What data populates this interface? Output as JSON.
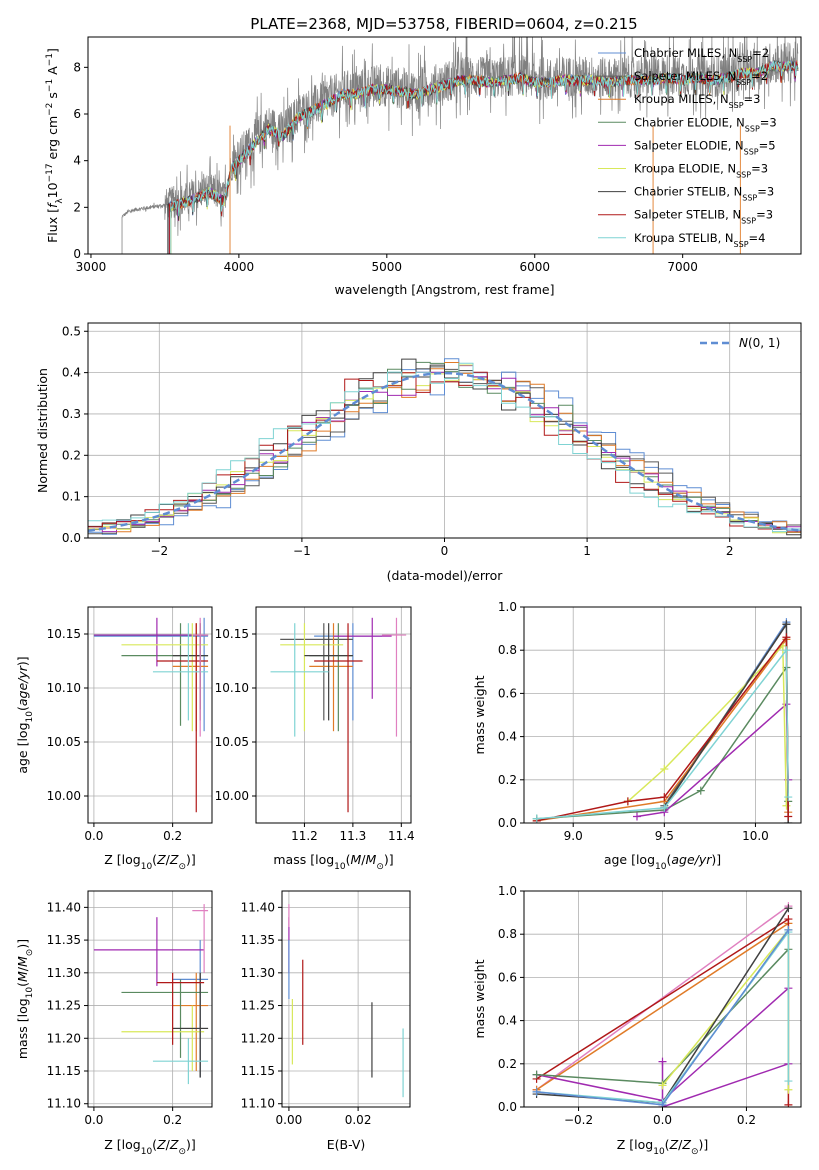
{
  "figure_title": "PLATE=2368, MJD=53758, FIBERID=0604, z=0.215",
  "colors": {
    "Chabrier MILES": "#5f8dd3",
    "Salpeter MILES": "#5a5a5a",
    "Kroupa MILES": "#e07b28",
    "Chabrier ELODIE": "#5a8a60",
    "Salpeter ELODIE": "#a02ab0",
    "Kroupa ELODIE": "#d8e85a",
    "Chabrier STELIB": "#404040",
    "Salpeter STELIB": "#b01818",
    "Kroupa STELIB": "#7fd3d3",
    "data": "#808080",
    "pink": "#e080c0",
    "gauss": "#5f8dd3",
    "grid": "#b0b0b0"
  },
  "chart_data": [
    {
      "id": "spectrum",
      "type": "line",
      "title": "PLATE=2368, MJD=53758, FIBERID=0604, z=0.215",
      "xlabel": "wavelength [Angstrom, rest frame]",
      "ylabel": "Flux [f_λ 10^-17 erg cm^-2 s^-1 A^-1]",
      "xlim": [
        2980,
        7800
      ],
      "ylim": [
        0,
        9.3
      ],
      "xticks": [
        3000,
        4000,
        5000,
        6000,
        7000
      ],
      "yticks": [
        0,
        2,
        4,
        6,
        8
      ],
      "grid": false,
      "legend_position": "upper right",
      "legend": [
        "Chabrier MILES, N_SSP=2",
        "Salpeter MILES, N_SSP=2",
        "Kroupa MILES, N_SSP=3",
        "Chabrier ELODIE, N_SSP=3",
        "Salpeter ELODIE, N_SSP=5",
        "Kroupa ELODIE, N_SSP=3",
        "Chabrier STELIB, N_SSP=3",
        "Salpeter STELIB, N_SSP=3",
        "Kroupa STELIB, N_SSP=4"
      ],
      "legend_colors": [
        "Chabrier MILES",
        "Salpeter MILES",
        "Kroupa MILES",
        "Chabrier ELODIE",
        "Salpeter ELODIE",
        "Kroupa ELODIE",
        "Chabrier STELIB",
        "Salpeter STELIB",
        "Kroupa STELIB"
      ],
      "data_envelope": {
        "x": [
          3210,
          3250,
          3300,
          3400,
          3500,
          3600,
          3700,
          3800,
          3900,
          3950,
          4050,
          4200,
          4300,
          4400,
          4500,
          4600,
          4700,
          4800,
          4900,
          5000,
          5100,
          5200,
          5300,
          5400,
          5500,
          5600,
          5700,
          5800,
          5900,
          6000,
          6100,
          6200,
          6300,
          6400,
          6500,
          6600,
          6700,
          6800,
          6900,
          7000,
          7100,
          7200,
          7300,
          7400,
          7500,
          7600
        ],
        "y": [
          1.6,
          1.8,
          1.9,
          2.0,
          2.1,
          2.3,
          2.5,
          2.8,
          2.4,
          3.8,
          4.5,
          5.5,
          5.2,
          6.0,
          6.3,
          6.6,
          7.0,
          7.0,
          7.2,
          7.2,
          7.1,
          7.0,
          7.2,
          7.4,
          7.6,
          7.6,
          7.5,
          7.6,
          7.7,
          7.5,
          7.5,
          7.6,
          7.6,
          7.6,
          7.5,
          7.6,
          7.6,
          7.6,
          7.7,
          7.6,
          7.7,
          7.6,
          7.7,
          7.9,
          7.9,
          8.2
        ]
      },
      "model_start": 3520
    },
    {
      "id": "residuals",
      "type": "bar",
      "xlabel": "(data-model)/error",
      "ylabel": "Normed distribution",
      "xlim": [
        -2.5,
        2.5
      ],
      "ylim": [
        0,
        0.52
      ],
      "xticks": [
        -2,
        -1,
        0,
        1,
        2
      ],
      "yticks": [
        0.0,
        0.1,
        0.2,
        0.3,
        0.4,
        0.5
      ],
      "grid": true,
      "legend": [
        "N(0,1)"
      ],
      "legend_position": "upper right",
      "gaussian": {
        "mean": 0,
        "sigma": 1
      },
      "bin_width": 0.1,
      "series_order": [
        "Chabrier MILES",
        "Salpeter MILES",
        "Kroupa MILES",
        "Chabrier ELODIE",
        "Salpeter ELODIE",
        "Kroupa ELODIE",
        "Chabrier STELIB",
        "Salpeter STELIB",
        "Kroupa STELIB"
      ]
    },
    {
      "id": "age_vs_Z",
      "type": "scatter",
      "xlabel": "Z [log10(Z/Z⊙)]",
      "ylabel": "age  [log10(age/yr)]",
      "xlim": [
        -0.015,
        0.3
      ],
      "ylim": [
        9.975,
        10.175
      ],
      "xticks": [
        0.0,
        0.2
      ],
      "yticks": [
        10.0,
        10.05,
        10.1,
        10.15
      ],
      "grid": true,
      "points": [
        {
          "s": "Chabrier MILES",
          "x": 0.28,
          "y": 10.148,
          "xlo": 0.0,
          "xhi": 0.29,
          "ylo": 10.06,
          "yhi": 10.165
        },
        {
          "s": "Salpeter MILES",
          "x": 0.27,
          "y": 10.149,
          "xlo": 0.0,
          "xhi": 0.29,
          "ylo": 10.07,
          "yhi": 10.16
        },
        {
          "s": "Kroupa MILES",
          "x": 0.26,
          "y": 10.12,
          "xlo": 0.2,
          "xhi": 0.29,
          "ylo": 10.06,
          "yhi": 10.16
        },
        {
          "s": "Chabrier ELODIE",
          "x": 0.22,
          "y": 10.13,
          "xlo": 0.07,
          "xhi": 0.29,
          "ylo": 10.065,
          "yhi": 10.16
        },
        {
          "s": "Salpeter ELODIE",
          "x": 0.16,
          "y": 10.149,
          "xlo": 0.0,
          "xhi": 0.29,
          "ylo": 10.12,
          "yhi": 10.165
        },
        {
          "s": "Kroupa ELODIE",
          "x": 0.25,
          "y": 10.14,
          "xlo": 0.07,
          "xhi": 0.29,
          "ylo": 10.06,
          "yhi": 10.16
        },
        {
          "s": "Chabrier STELIB",
          "x": 0.27,
          "y": 10.13,
          "xlo": 0.2,
          "xhi": 0.29,
          "ylo": 10.08,
          "yhi": 10.16
        },
        {
          "s": "Salpeter STELIB",
          "x": 0.26,
          "y": 10.125,
          "xlo": 0.16,
          "xhi": 0.29,
          "ylo": 9.985,
          "yhi": 10.16
        },
        {
          "s": "Kroupa STELIB",
          "x": 0.24,
          "y": 10.115,
          "xlo": 0.15,
          "xhi": 0.29,
          "ylo": 10.07,
          "yhi": 10.16
        },
        {
          "s": "pink",
          "x": 0.27,
          "y": 10.149,
          "xlo": 0.25,
          "xhi": 0.29,
          "ylo": 10.055,
          "yhi": 10.165
        }
      ]
    },
    {
      "id": "age_vs_mass",
      "type": "scatter",
      "xlabel": "mass [log10(M/M⊙)]",
      "ylabel": "",
      "xlim": [
        11.1,
        11.42
      ],
      "ylim": [
        9.975,
        10.175
      ],
      "xticks": [
        11.2,
        11.3,
        11.4
      ],
      "yticks": [
        10.0,
        10.05,
        10.1,
        10.15
      ],
      "grid": true,
      "points": [
        {
          "s": "Chabrier MILES",
          "x": 11.3,
          "y": 10.148,
          "xlo": 11.22,
          "xhi": 11.36,
          "ylo": 10.07,
          "yhi": 10.16
        },
        {
          "s": "Salpeter MILES",
          "x": 11.24,
          "y": 10.145,
          "xlo": 11.15,
          "xhi": 11.3,
          "ylo": 10.07,
          "yhi": 10.16
        },
        {
          "s": "Kroupa MILES",
          "x": 11.26,
          "y": 10.12,
          "xlo": 11.21,
          "xhi": 11.3,
          "ylo": 10.06,
          "yhi": 10.16
        },
        {
          "s": "Chabrier ELODIE",
          "x": 11.27,
          "y": 10.13,
          "xlo": 11.21,
          "xhi": 11.3,
          "ylo": 10.06,
          "yhi": 10.16
        },
        {
          "s": "Salpeter ELODIE",
          "x": 11.34,
          "y": 10.148,
          "xlo": 11.26,
          "xhi": 11.38,
          "ylo": 10.09,
          "yhi": 10.165
        },
        {
          "s": "Kroupa ELODIE",
          "x": 11.2,
          "y": 10.14,
          "xlo": 11.15,
          "xhi": 11.28,
          "ylo": 10.06,
          "yhi": 10.16
        },
        {
          "s": "Chabrier STELIB",
          "x": 11.25,
          "y": 10.13,
          "xlo": 11.2,
          "xhi": 11.3,
          "ylo": 10.07,
          "yhi": 10.16
        },
        {
          "s": "Salpeter STELIB",
          "x": 11.29,
          "y": 10.125,
          "xlo": 11.22,
          "xhi": 11.32,
          "ylo": 9.985,
          "yhi": 10.16
        },
        {
          "s": "Kroupa STELIB",
          "x": 11.18,
          "y": 10.115,
          "xlo": 11.13,
          "xhi": 11.25,
          "ylo": 10.055,
          "yhi": 10.16
        },
        {
          "s": "pink",
          "x": 11.39,
          "y": 10.149,
          "xlo": 11.36,
          "xhi": 11.41,
          "ylo": 10.055,
          "yhi": 10.165
        }
      ]
    },
    {
      "id": "mass_weight_vs_age",
      "type": "line",
      "xlabel": "age  [log10(age/yr)]",
      "ylabel": "mass weight",
      "xlim": [
        8.73,
        10.25
      ],
      "ylim": [
        0,
        1
      ],
      "xticks": [
        9.0,
        9.5,
        10.0
      ],
      "yticks": [
        0.0,
        0.2,
        0.4,
        0.6,
        0.8,
        1.0
      ],
      "grid": true,
      "series": [
        {
          "s": "Chabrier MILES",
          "x": [
            9.5,
            10.17
          ],
          "y": [
            0.07,
            0.93
          ]
        },
        {
          "s": "Salpeter MILES",
          "x": [
            9.5,
            10.17
          ],
          "y": [
            0.08,
            0.92
          ]
        },
        {
          "s": "Kroupa MILES",
          "x": [
            8.8,
            9.5,
            10.17,
            10.18
          ],
          "y": [
            0.01,
            0.1,
            0.85,
            0.05
          ]
        },
        {
          "s": "Chabrier ELODIE",
          "x": [
            8.8,
            9.5,
            9.7,
            10.17,
            10.18
          ],
          "y": [
            0.02,
            0.06,
            0.15,
            0.72,
            0.1
          ]
        },
        {
          "s": "Salpeter ELODIE",
          "x": [
            9.35,
            9.5,
            10.17,
            10.18
          ],
          "y": [
            0.03,
            0.05,
            0.55,
            0.2
          ]
        },
        {
          "s": "Kroupa ELODIE",
          "x": [
            9.3,
            9.5,
            10.15,
            10.17
          ],
          "y": [
            0.1,
            0.25,
            0.82,
            0.08
          ]
        },
        {
          "s": "Chabrier STELIB",
          "x": [
            9.5,
            10.17,
            10.18
          ],
          "y": [
            0.07,
            0.92,
            0.0
          ]
        },
        {
          "s": "Salpeter STELIB",
          "x": [
            8.8,
            9.3,
            9.5,
            10.17,
            10.18
          ],
          "y": [
            0.01,
            0.1,
            0.12,
            0.86,
            0.03
          ]
        },
        {
          "s": "Kroupa STELIB",
          "x": [
            8.8,
            9.5,
            10.17,
            10.18
          ],
          "y": [
            0.02,
            0.07,
            0.8,
            0.12
          ]
        }
      ]
    },
    {
      "id": "mass_vs_Z",
      "type": "scatter",
      "xlabel": "Z [log10(Z/Z⊙)]",
      "ylabel": "mass [log10(M/M⊙)]",
      "xlim": [
        -0.015,
        0.3
      ],
      "ylim": [
        11.095,
        11.425
      ],
      "xticks": [
        0.0,
        0.2
      ],
      "yticks": [
        11.1,
        11.15,
        11.2,
        11.25,
        11.3,
        11.35,
        11.4
      ],
      "grid": true,
      "points": [
        {
          "s": "Chabrier MILES",
          "x": 0.27,
          "y": 11.29,
          "xlo": 0.2,
          "xhi": 0.29,
          "ylo": 11.14,
          "yhi": 11.35
        },
        {
          "s": "Salpeter MILES",
          "x": 0.27,
          "y": 11.215,
          "xlo": 0.2,
          "xhi": 0.29,
          "ylo": 11.14,
          "yhi": 11.3
        },
        {
          "s": "Kroupa MILES",
          "x": 0.26,
          "y": 11.25,
          "xlo": 0.2,
          "xhi": 0.29,
          "ylo": 11.15,
          "yhi": 11.3
        },
        {
          "s": "Chabrier ELODIE",
          "x": 0.22,
          "y": 11.27,
          "xlo": 0.07,
          "xhi": 0.29,
          "ylo": 11.17,
          "yhi": 11.29
        },
        {
          "s": "Salpeter ELODIE",
          "x": 0.16,
          "y": 11.335,
          "xlo": 0.0,
          "xhi": 0.28,
          "ylo": 11.28,
          "yhi": 11.385
        },
        {
          "s": "Kroupa ELODIE",
          "x": 0.25,
          "y": 11.21,
          "xlo": 0.07,
          "xhi": 0.28,
          "ylo": 11.15,
          "yhi": 11.25
        },
        {
          "s": "Chabrier STELIB",
          "x": 0.27,
          "y": 11.215,
          "xlo": 0.2,
          "xhi": 0.29,
          "ylo": 11.14,
          "yhi": 11.3
        },
        {
          "s": "Salpeter STELIB",
          "x": 0.2,
          "y": 11.285,
          "xlo": 0.16,
          "xhi": 0.28,
          "ylo": 11.19,
          "yhi": 11.3
        },
        {
          "s": "Kroupa STELIB",
          "x": 0.24,
          "y": 11.165,
          "xlo": 0.15,
          "xhi": 0.29,
          "ylo": 11.13,
          "yhi": 11.2
        },
        {
          "s": "pink",
          "x": 0.28,
          "y": 11.395,
          "xlo": 0.25,
          "xhi": 0.29,
          "ylo": 11.3,
          "yhi": 11.405
        }
      ]
    },
    {
      "id": "mass_vs_ebv",
      "type": "scatter",
      "xlabel": "E(B-V)",
      "ylabel": "",
      "xlim": [
        -0.002,
        0.035
      ],
      "ylim": [
        11.095,
        11.425
      ],
      "xticks": [
        0.0,
        0.02
      ],
      "yticks": [
        11.1,
        11.15,
        11.2,
        11.25,
        11.3,
        11.35,
        11.4
      ],
      "grid": true,
      "points": [
        {
          "s": "Salpeter ELODIE",
          "x": 0.0,
          "y": 11.34,
          "ylo": 11.3,
          "yhi": 11.385
        },
        {
          "s": "pink",
          "x": 0.0,
          "y": 11.4,
          "ylo": 11.37,
          "yhi": 11.405
        },
        {
          "s": "Chabrier MILES",
          "x": 0.0,
          "y": 11.29,
          "ylo": 11.26,
          "yhi": 11.35
        },
        {
          "s": "Kroupa ELODIE",
          "x": 0.001,
          "y": 11.21,
          "ylo": 11.16,
          "yhi": 11.26
        },
        {
          "s": "Salpeter STELIB",
          "x": 0.004,
          "y": 11.25,
          "ylo": 11.19,
          "yhi": 11.32
        },
        {
          "s": "Chabrier STELIB",
          "x": 0.024,
          "y": 11.2,
          "ylo": 11.14,
          "yhi": 11.255
        },
        {
          "s": "Kroupa STELIB",
          "x": 0.033,
          "y": 11.16,
          "ylo": 11.11,
          "yhi": 11.215
        }
      ]
    },
    {
      "id": "mass_weight_vs_Z",
      "type": "line",
      "xlabel": "Z [log10(Z/Z⊙)]",
      "ylabel": "mass weight",
      "xlim": [
        -0.33,
        0.33
      ],
      "ylim": [
        0,
        1
      ],
      "xticks": [
        -0.2,
        0.0,
        0.2
      ],
      "yticks": [
        0.0,
        0.2,
        0.4,
        0.6,
        0.8,
        1.0
      ],
      "grid": true,
      "series": [
        {
          "s": "pink",
          "x": [
            -0.3,
            0.3
          ],
          "y": [
            0.08,
            0.93
          ]
        },
        {
          "s": "Kroupa MILES",
          "x": [
            -0.3,
            0.3
          ],
          "y": [
            0.08,
            0.85
          ]
        },
        {
          "s": "Salpeter STELIB",
          "x": [
            -0.3,
            0.3,
            0.3
          ],
          "y": [
            0.13,
            0.87,
            0.01
          ]
        },
        {
          "s": "Salpeter ELODIE",
          "x": [
            -0.3,
            0.0,
            0.3
          ],
          "y": [
            0.15,
            0.03,
            0.55
          ]
        },
        {
          "s": "Salpeter ELODIE",
          "x": [
            0.0,
            0.0,
            0.3
          ],
          "y": [
            0.21,
            0.0,
            0.2
          ]
        },
        {
          "s": "Chabrier ELODIE",
          "x": [
            -0.3,
            0.0,
            0.3
          ],
          "y": [
            0.15,
            0.11,
            0.73
          ]
        },
        {
          "s": "Kroupa ELODIE",
          "x": [
            0.0,
            0.3,
            0.3
          ],
          "y": [
            0.1,
            0.82,
            0.08
          ]
        },
        {
          "s": "Chabrier STELIB",
          "x": [
            -0.3,
            0.0,
            0.3
          ],
          "y": [
            0.06,
            0.02,
            0.92
          ]
        },
        {
          "s": "Kroupa STELIB",
          "x": [
            -0.3,
            0.0,
            0.3,
            0.3
          ],
          "y": [
            0.07,
            0.02,
            0.81,
            0.12
          ]
        },
        {
          "s": "Chabrier MILES",
          "x": [
            -0.3,
            0.0,
            0.3
          ],
          "y": [
            0.07,
            0.01,
            0.82
          ]
        }
      ]
    }
  ]
}
